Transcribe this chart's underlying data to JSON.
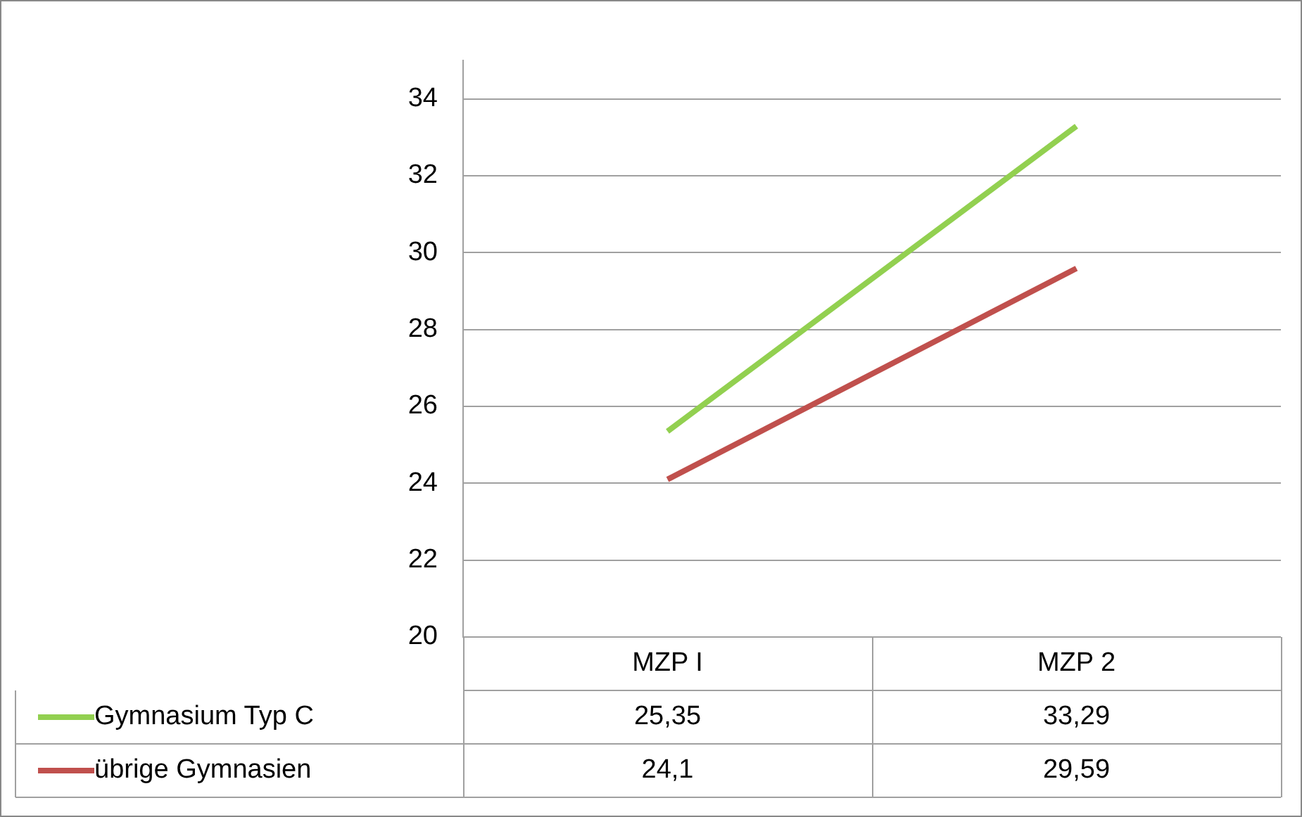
{
  "chart_data": {
    "type": "line",
    "categories": [
      "MZP I",
      "MZP 2"
    ],
    "series": [
      {
        "name": "Gymnasium Typ C",
        "color": "#92d050",
        "values": [
          25.35,
          33.29
        ],
        "value_labels": [
          "25,35",
          "33,29"
        ]
      },
      {
        "name": "übrige Gymnasien",
        "color": "#c0504d",
        "values": [
          24.1,
          29.59
        ],
        "value_labels": [
          "24,1",
          "29,59"
        ]
      }
    ],
    "ylim": [
      20,
      35
    ],
    "yticks": [
      20,
      22,
      24,
      26,
      28,
      30,
      32,
      34
    ],
    "grid": "y",
    "marker": "none",
    "legend": "bottom"
  }
}
